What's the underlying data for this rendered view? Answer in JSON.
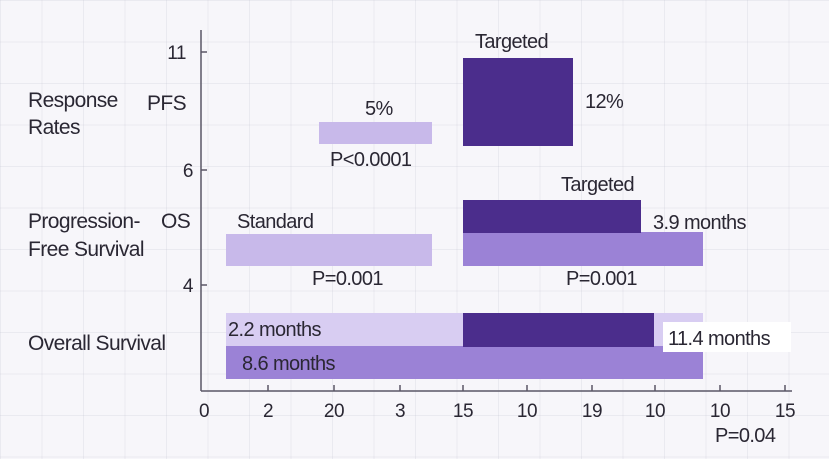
{
  "chart_data": {
    "type": "bar",
    "y_ticks": [
      "11",
      "6",
      "4"
    ],
    "x_ticks": [
      "0",
      "2",
      "20",
      "3",
      "15",
      "10",
      "19",
      "10",
      "10",
      "15"
    ],
    "rows": [
      {
        "label_lines": [
          "Response",
          "Rates"
        ],
        "sub_label": "PFS"
      },
      {
        "label_lines": [
          "Progression-",
          "Free Survival"
        ],
        "sub_label": "OS"
      },
      {
        "label_lines": [
          "Overall Survival"
        ],
        "sub_label": ""
      }
    ],
    "series": [
      {
        "name": "Standard",
        "color": "#c8b9ea"
      },
      {
        "name": "Targeted",
        "color": "#4b2d8c"
      }
    ],
    "annotations": {
      "response_standard_value": "5%",
      "response_standard_p": "P<0.0001",
      "response_targeted_label": "Targeted",
      "response_targeted_value": "12%",
      "pfs_standard_label": "Standard",
      "pfs_standard_p": "P=0.001",
      "pfs_targeted_label": "Targeted",
      "pfs_targeted_value": "3.9 months",
      "pfs_targeted_p": "P=0.001",
      "os_standard_value_1": "2.2 months",
      "os_standard_value_2": "8.6 months",
      "os_targeted_value": "11.4 months",
      "os_p": "P=0.04"
    },
    "colors": {
      "axis": "#5a5766",
      "light_bar": "#c8b9ea",
      "light_bar_2": "#b7a4e2",
      "mid_bar": "#9b82d6",
      "dark_bar": "#4b2d8c",
      "dark_bar_2": "#5a3aa0"
    }
  }
}
